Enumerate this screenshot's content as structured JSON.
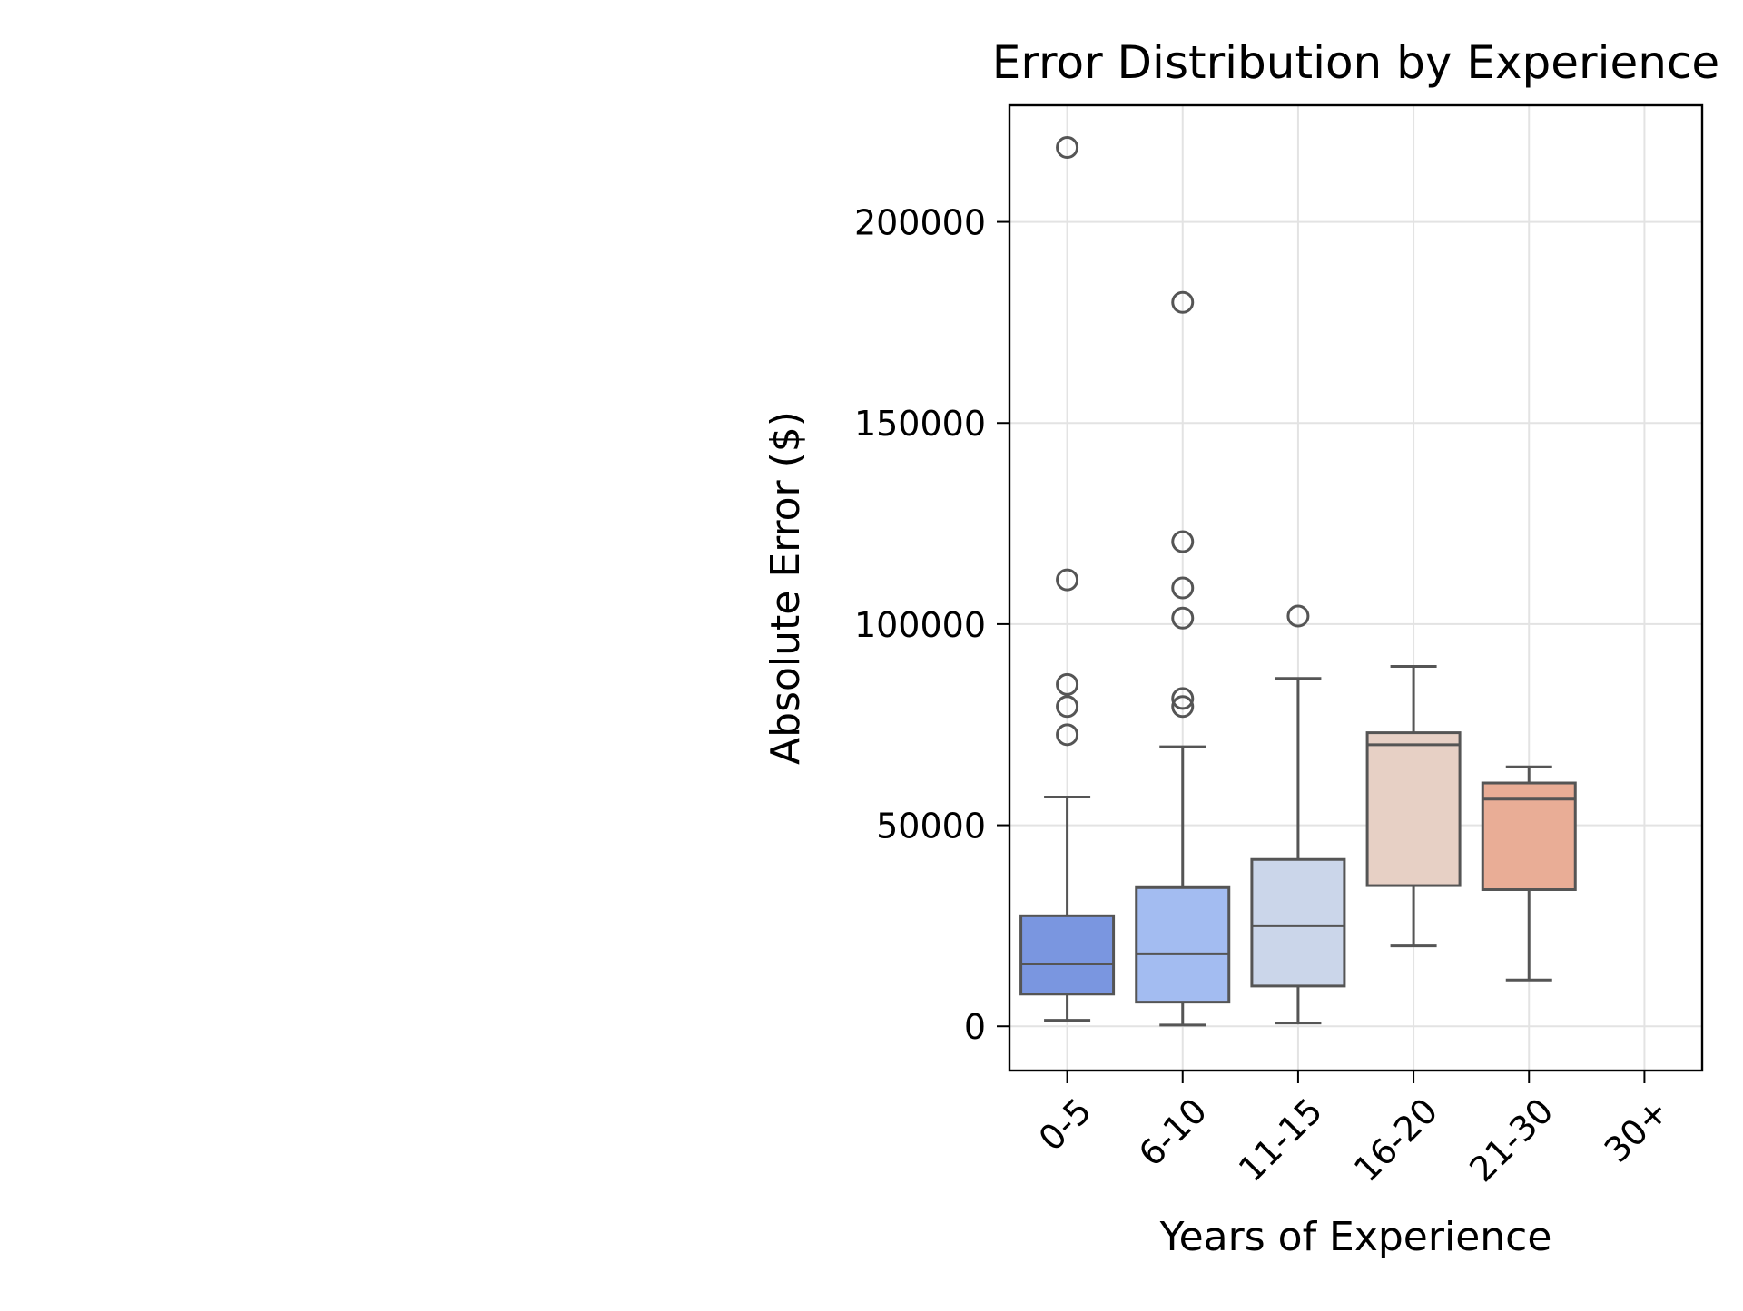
{
  "chart_data": {
    "type": "box",
    "title": "Error Distribution by Experience",
    "xlabel": "Years of Experience",
    "ylabel": "Absolute Error ($)",
    "categories": [
      "0-5",
      "6-10",
      "11-15",
      "16-20",
      "21-30",
      "30+"
    ],
    "ylim": [
      -11000,
      229000
    ],
    "yticks": [
      0,
      50000,
      100000,
      150000,
      200000
    ],
    "ytick_labels": [
      "0",
      "50000",
      "100000",
      "150000",
      "200000"
    ],
    "grid": true,
    "boxes": [
      {
        "category": "0-5",
        "whisker_low": 1500,
        "q1": 8000,
        "median": 15500,
        "q3": 27500,
        "whisker_high": 57000,
        "outliers": [
          72500,
          79500,
          85000,
          111000,
          218500
        ],
        "color": "#7a96e0"
      },
      {
        "category": "6-10",
        "whisker_low": 300,
        "q1": 6000,
        "median": 18000,
        "q3": 34500,
        "whisker_high": 69500,
        "outliers": [
          79500,
          81500,
          101500,
          109000,
          120500,
          180000
        ],
        "color": "#a3bcf1"
      },
      {
        "category": "11-15",
        "whisker_low": 800,
        "q1": 10000,
        "median": 25000,
        "q3": 41500,
        "whisker_high": 86500,
        "outliers": [
          102000
        ],
        "color": "#cbd6ea"
      },
      {
        "category": "16-20",
        "whisker_low": 20000,
        "q1": 35000,
        "median": 70000,
        "q3": 73000,
        "whisker_high": 89500,
        "outliers": [],
        "color": "#e7d0c5"
      },
      {
        "category": "21-30",
        "whisker_low": 11500,
        "q1": 34000,
        "median": 56500,
        "q3": 60500,
        "whisker_high": 64500,
        "outliers": [],
        "color": "#e9ad96"
      },
      {
        "category": "30+",
        "empty": true
      }
    ],
    "edge_color": "#555555"
  }
}
